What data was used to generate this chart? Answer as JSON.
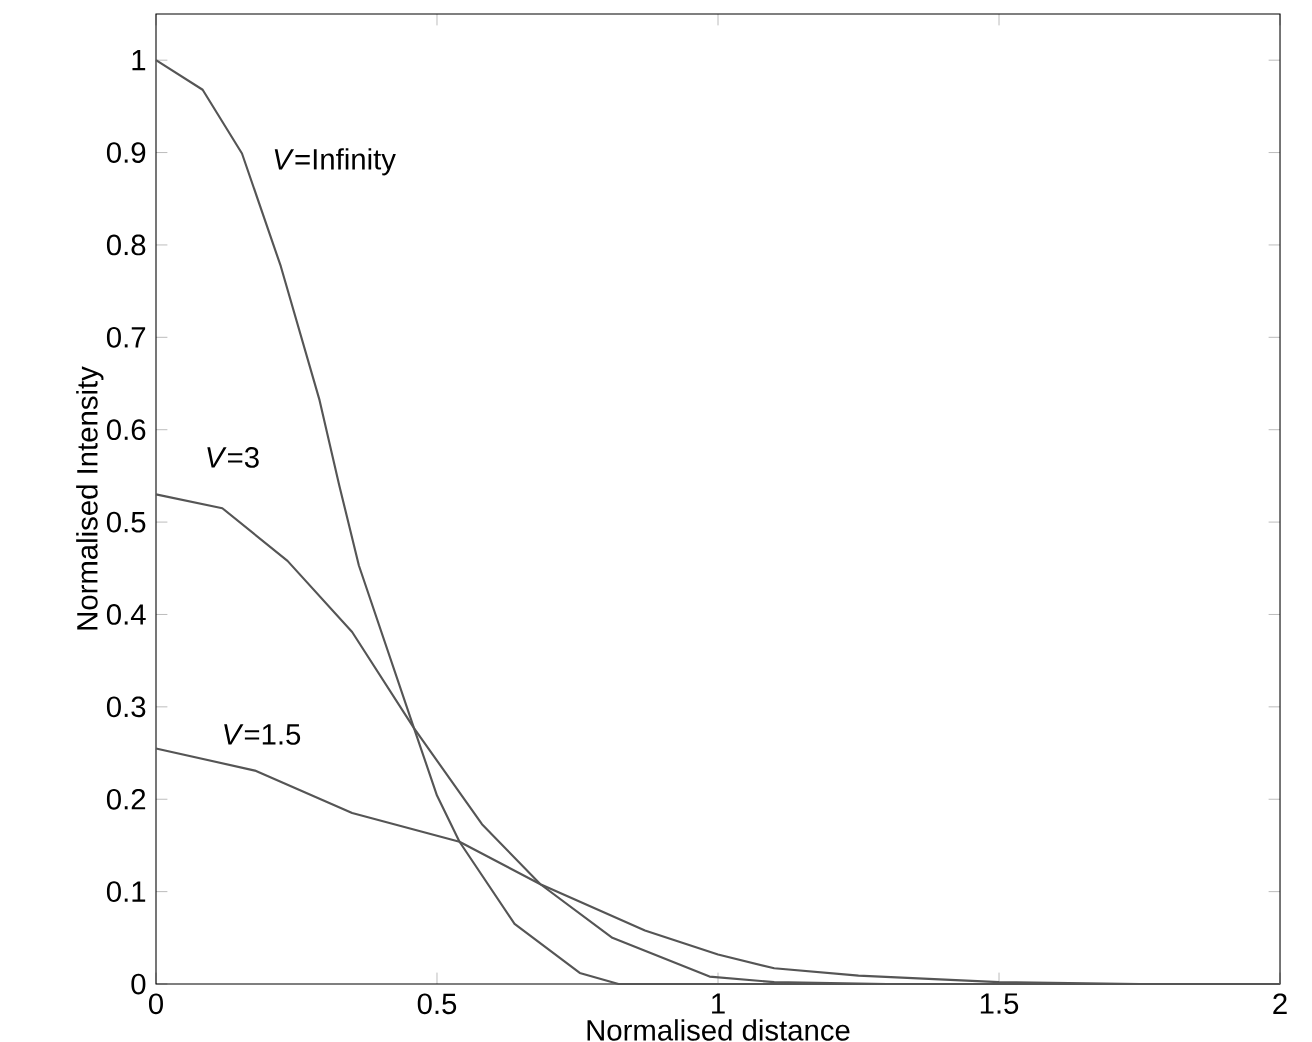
{
  "chart_data": {
    "type": "line",
    "xlabel": "Normalised distance",
    "ylabel": "Normalised Intensity",
    "xlim": [
      0,
      2
    ],
    "ylim": [
      0,
      1.05
    ],
    "xticks": [
      0,
      0.5,
      1,
      1.5,
      2
    ],
    "yticks": [
      0,
      0.1,
      0.2,
      0.3,
      0.4,
      0.5,
      0.6,
      0.7,
      0.8,
      0.9,
      1
    ],
    "grid": false,
    "series": [
      {
        "color": "#555555",
        "x": [
          0,
          0.083,
          0.153,
          0.222,
          0.291,
          0.326,
          0.361,
          0.459,
          0.5,
          0.54,
          0.638,
          0.754,
          0.823,
          2
        ],
        "values": [
          1,
          0.968,
          0.899,
          0.777,
          0.632,
          0.54,
          0.453,
          0.277,
          0.204,
          0.154,
          0.065,
          0.012,
          0,
          0
        ]
      },
      {
        "color": "#555555",
        "x": [
          0,
          0.118,
          0.234,
          0.349,
          0.459,
          0.58,
          0.684,
          0.812,
          0.985,
          1.1,
          1.3,
          2
        ],
        "values": [
          0.53,
          0.515,
          0.458,
          0.381,
          0.277,
          0.173,
          0.108,
          0.05,
          0.008,
          0.002,
          0,
          0
        ]
      },
      {
        "color": "#555555",
        "x": [
          0,
          0.176,
          0.349,
          0.54,
          0.684,
          0.87,
          1,
          1.1,
          1.25,
          1.5,
          1.75,
          2
        ],
        "values": [
          0.255,
          0.231,
          0.185,
          0.154,
          0.108,
          0.058,
          0.032,
          0.017,
          0.009,
          0.002,
          0,
          0
        ]
      }
    ],
    "annotations": [
      "*V*=Infinity",
      "*V*=3",
      "*V*=1.5"
    ]
  }
}
